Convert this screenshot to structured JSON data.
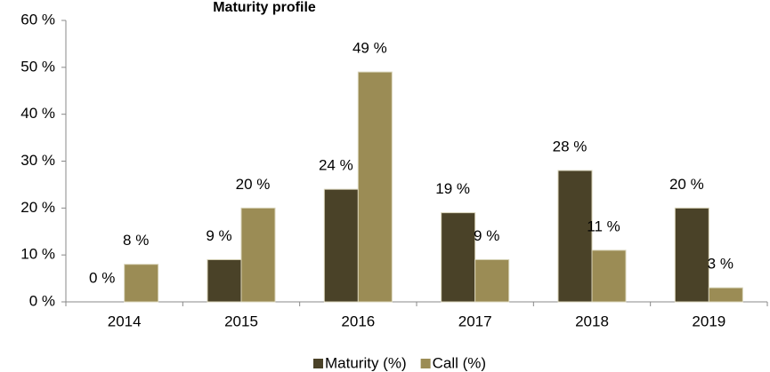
{
  "chart_data": {
    "type": "bar",
    "title": "Maturity profile",
    "categories": [
      "2014",
      "2015",
      "2016",
      "2017",
      "2018",
      "2019"
    ],
    "series": [
      {
        "name": "Maturity (%)",
        "color": "#4a4228",
        "values": [
          0,
          9,
          24,
          19,
          28,
          20
        ],
        "value_labels": [
          "0 %",
          "9 %",
          "24 %",
          "19 %",
          "28 %",
          "20 %"
        ]
      },
      {
        "name": "Call (%)",
        "color": "#9b8c55",
        "values": [
          8,
          20,
          49,
          9,
          11,
          3
        ],
        "value_labels": [
          "8 %",
          "20 %",
          "49 %",
          "9 %",
          "11 %",
          "3 %"
        ]
      }
    ],
    "ylim": [
      0,
      60
    ],
    "yticks": [
      {
        "value": 0,
        "label": "0 %"
      },
      {
        "value": 10,
        "label": "10 %"
      },
      {
        "value": 20,
        "label": "20 %"
      },
      {
        "value": 30,
        "label": "30 %"
      },
      {
        "value": 40,
        "label": "40 %"
      },
      {
        "value": 50,
        "label": "50 %"
      },
      {
        "value": 60,
        "label": "60 %"
      }
    ],
    "grid": false,
    "legend": "bottom"
  }
}
